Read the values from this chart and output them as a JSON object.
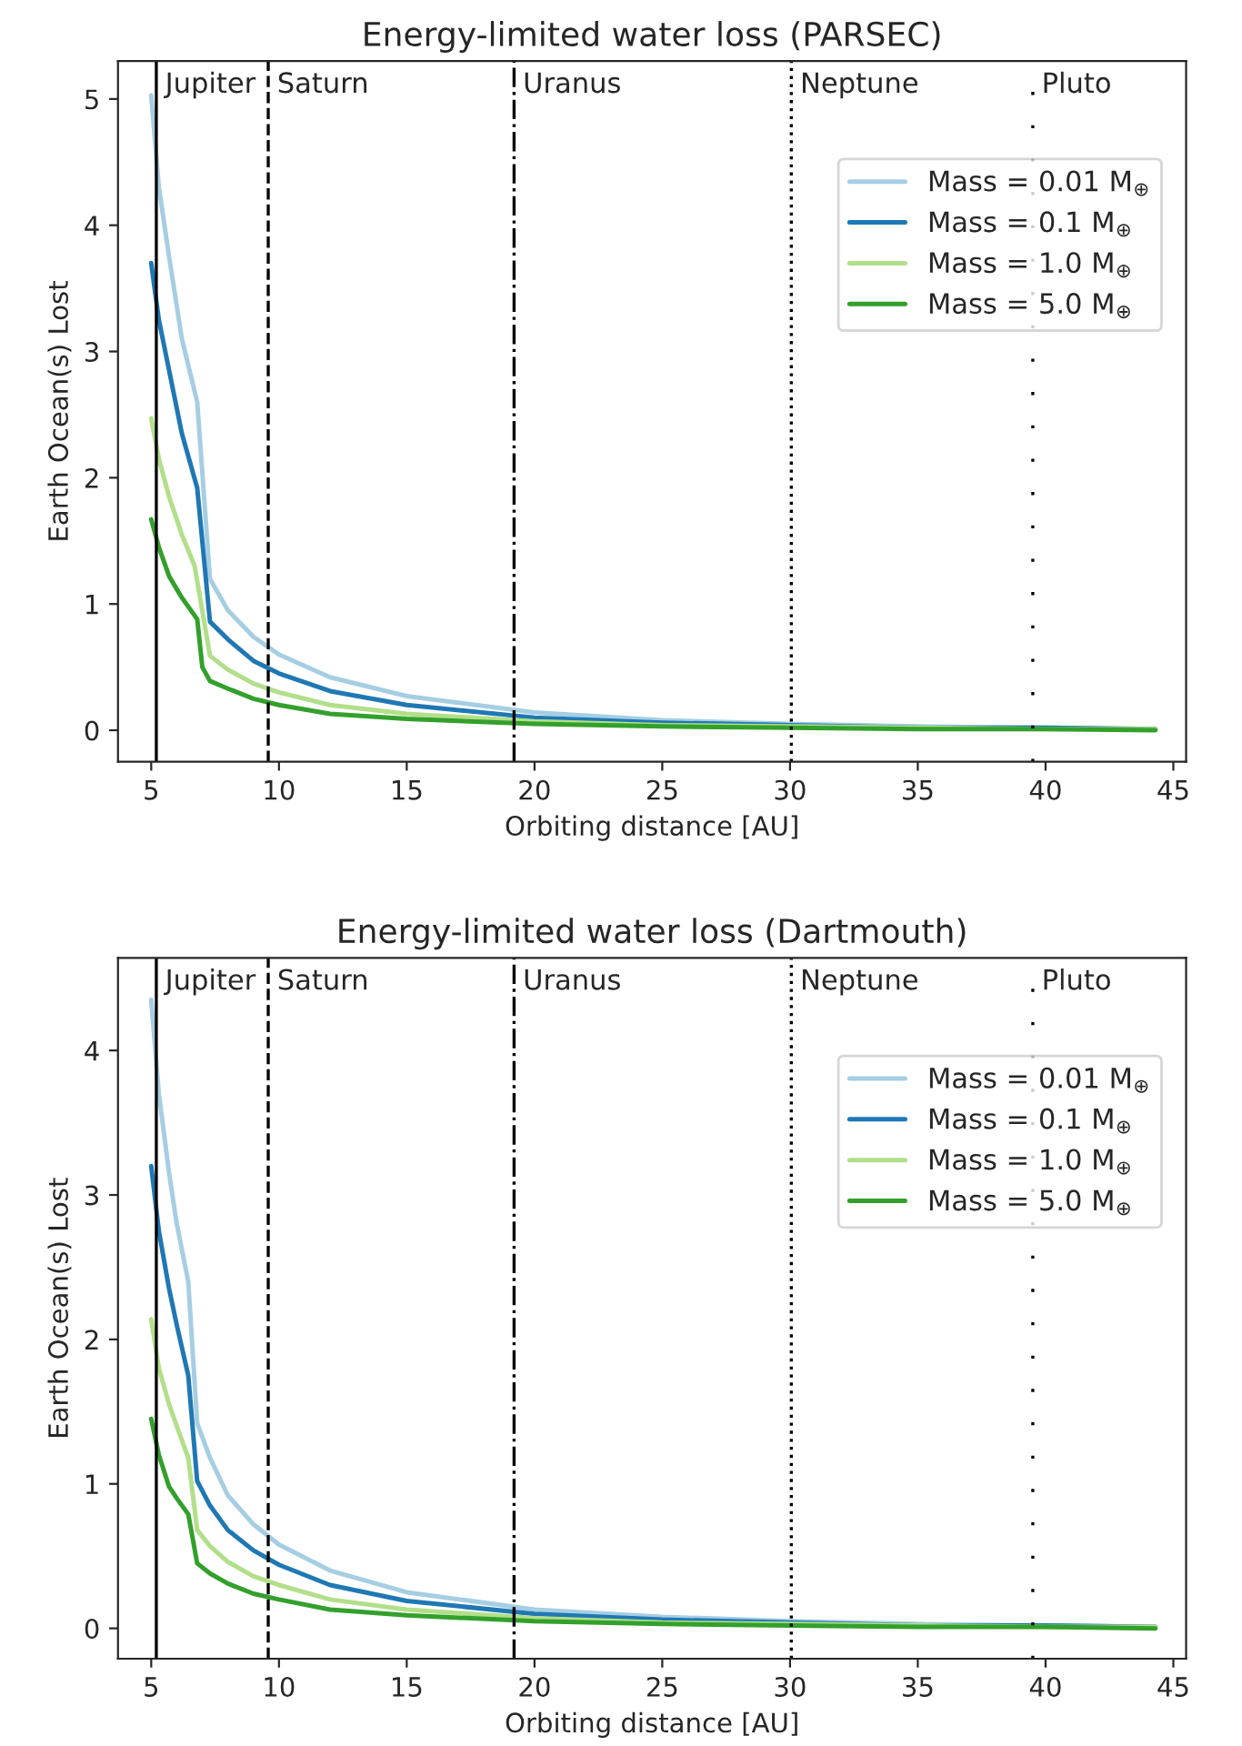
{
  "chart_data": [
    {
      "type": "line",
      "title": "Energy-limited water loss (PARSEC)",
      "xlabel": "Orbiting distance [AU]",
      "ylabel": "Earth Ocean(s) Lost",
      "xlim": [
        3.7,
        45.5
      ],
      "xticks": [
        5,
        10,
        15,
        20,
        25,
        30,
        35,
        40,
        45
      ],
      "ylim": [
        -0.25,
        5.3
      ],
      "yticks": [
        0,
        1,
        2,
        3,
        4,
        5
      ],
      "legend": "top right",
      "grid": false,
      "marker": "none",
      "line_style": "solid",
      "ref_lines": [
        {
          "axis": "x",
          "value": 5.2,
          "label": "Jupiter",
          "color": "#000000",
          "line_style": "solid"
        },
        {
          "axis": "x",
          "value": 9.58,
          "label": "Saturn",
          "color": "#000000",
          "line_style": "dashed"
        },
        {
          "axis": "x",
          "value": 19.2,
          "label": "Uranus",
          "color": "#000000",
          "line_style": "dashdot"
        },
        {
          "axis": "x",
          "value": 30.05,
          "label": "Neptune",
          "color": "#000000",
          "line_style": "dotted"
        },
        {
          "axis": "x",
          "value": 39.5,
          "label": "Pluto",
          "color": "#000000",
          "line_style": "loosely dotted"
        }
      ],
      "series": [
        {
          "name": "Mass = 0.01 M$_{⊕}$",
          "color": "#a6cee3",
          "x": [
            5.0,
            5.3,
            5.7,
            6.2,
            6.8,
            7.3,
            8,
            9,
            10,
            12,
            15,
            20,
            25,
            30,
            35,
            40,
            44.3
          ],
          "values": [
            5.03,
            4.3,
            3.75,
            3.1,
            2.6,
            1.2,
            0.95,
            0.74,
            0.6,
            0.42,
            0.27,
            0.14,
            0.08,
            0.05,
            0.03,
            0.02,
            0.01
          ]
        },
        {
          "name": "Mass = 0.1 M$_{⊕}$",
          "color": "#1f78b4",
          "x": [
            5.0,
            5.3,
            5.7,
            6.2,
            6.8,
            7.3,
            8,
            9,
            10,
            12,
            15,
            20,
            25,
            30,
            35,
            40,
            44.3
          ],
          "values": [
            3.7,
            3.25,
            2.85,
            2.35,
            1.92,
            0.86,
            0.72,
            0.55,
            0.45,
            0.31,
            0.2,
            0.1,
            0.06,
            0.04,
            0.02,
            0.02,
            0.01
          ]
        },
        {
          "name": "Mass = 1.0 M$_{⊕}$",
          "color": "#b2df8a",
          "x": [
            5.0,
            5.3,
            5.7,
            6.2,
            6.7,
            7.3,
            8,
            9,
            10,
            12,
            15,
            20,
            25,
            30,
            35,
            40,
            44.3
          ],
          "values": [
            2.47,
            2.15,
            1.85,
            1.55,
            1.3,
            0.59,
            0.48,
            0.37,
            0.3,
            0.2,
            0.13,
            0.07,
            0.04,
            0.03,
            0.02,
            0.01,
            0.01
          ]
        },
        {
          "name": "Mass = 5.0 M$_{⊕}$",
          "color": "#33a02c",
          "x": [
            5.0,
            5.3,
            5.7,
            6.2,
            6.8,
            7.0,
            7.3,
            8,
            9,
            10,
            12,
            15,
            20,
            25,
            30,
            35,
            40,
            44.3
          ],
          "values": [
            1.67,
            1.45,
            1.22,
            1.05,
            0.88,
            0.5,
            0.39,
            0.33,
            0.25,
            0.2,
            0.13,
            0.09,
            0.05,
            0.03,
            0.02,
            0.01,
            0.01,
            0.0
          ]
        }
      ]
    },
    {
      "type": "line",
      "title": "Energy-limited water loss (Dartmouth)",
      "xlabel": "Orbiting distance [AU]",
      "ylabel": "Earth Ocean(s) Lost",
      "xlim": [
        3.7,
        45.5
      ],
      "xticks": [
        5,
        10,
        15,
        20,
        25,
        30,
        35,
        40,
        45
      ],
      "ylim": [
        -0.21,
        4.64
      ],
      "yticks": [
        0,
        1,
        2,
        3,
        4
      ],
      "legend": "top right",
      "grid": false,
      "marker": "none",
      "line_style": "solid",
      "ref_lines": [
        {
          "axis": "x",
          "value": 5.2,
          "label": "Jupiter",
          "color": "#000000",
          "line_style": "solid"
        },
        {
          "axis": "x",
          "value": 9.58,
          "label": "Saturn",
          "color": "#000000",
          "line_style": "dashed"
        },
        {
          "axis": "x",
          "value": 19.2,
          "label": "Uranus",
          "color": "#000000",
          "line_style": "dashdot"
        },
        {
          "axis": "x",
          "value": 30.05,
          "label": "Neptune",
          "color": "#000000",
          "line_style": "dotted"
        },
        {
          "axis": "x",
          "value": 39.5,
          "label": "Pluto",
          "color": "#000000",
          "line_style": "loosely dotted"
        }
      ],
      "series": [
        {
          "name": "Mass = 0.01 M$_{⊕}$",
          "color": "#a6cee3",
          "x": [
            5.0,
            5.3,
            5.7,
            6.0,
            6.45,
            6.8,
            7.3,
            8,
            9,
            10,
            12,
            15,
            20,
            25,
            30,
            35,
            40,
            44.3
          ],
          "values": [
            4.35,
            3.7,
            3.15,
            2.8,
            2.4,
            1.42,
            1.18,
            0.92,
            0.72,
            0.58,
            0.4,
            0.25,
            0.13,
            0.08,
            0.05,
            0.03,
            0.02,
            0.01
          ]
        },
        {
          "name": "Mass = 0.1 M$_{⊕}$",
          "color": "#1f78b4",
          "x": [
            5.0,
            5.3,
            5.7,
            6.0,
            6.45,
            6.8,
            7.3,
            8,
            9,
            10,
            12,
            15,
            20,
            25,
            30,
            35,
            40,
            44.3
          ],
          "values": [
            3.2,
            2.75,
            2.35,
            2.1,
            1.75,
            1.02,
            0.85,
            0.68,
            0.54,
            0.44,
            0.3,
            0.19,
            0.1,
            0.06,
            0.04,
            0.02,
            0.02,
            0.01
          ]
        },
        {
          "name": "Mass = 1.0 M$_{⊕}$",
          "color": "#b2df8a",
          "x": [
            5.0,
            5.3,
            5.7,
            6.0,
            6.45,
            6.8,
            7.3,
            8,
            9,
            10,
            12,
            15,
            20,
            25,
            30,
            35,
            40,
            44.3
          ],
          "values": [
            2.14,
            1.8,
            1.55,
            1.4,
            1.18,
            0.68,
            0.57,
            0.46,
            0.36,
            0.3,
            0.2,
            0.13,
            0.07,
            0.04,
            0.03,
            0.02,
            0.01,
            0.01
          ]
        },
        {
          "name": "Mass = 5.0 M$_{⊕}$",
          "color": "#33a02c",
          "x": [
            5.0,
            5.3,
            5.7,
            6.0,
            6.45,
            6.8,
            7.3,
            8,
            9,
            10,
            12,
            15,
            20,
            25,
            30,
            35,
            40,
            44.3
          ],
          "values": [
            1.45,
            1.2,
            0.98,
            0.9,
            0.79,
            0.45,
            0.38,
            0.31,
            0.24,
            0.2,
            0.13,
            0.09,
            0.05,
            0.03,
            0.02,
            0.01,
            0.01,
            0.0
          ]
        }
      ]
    }
  ]
}
